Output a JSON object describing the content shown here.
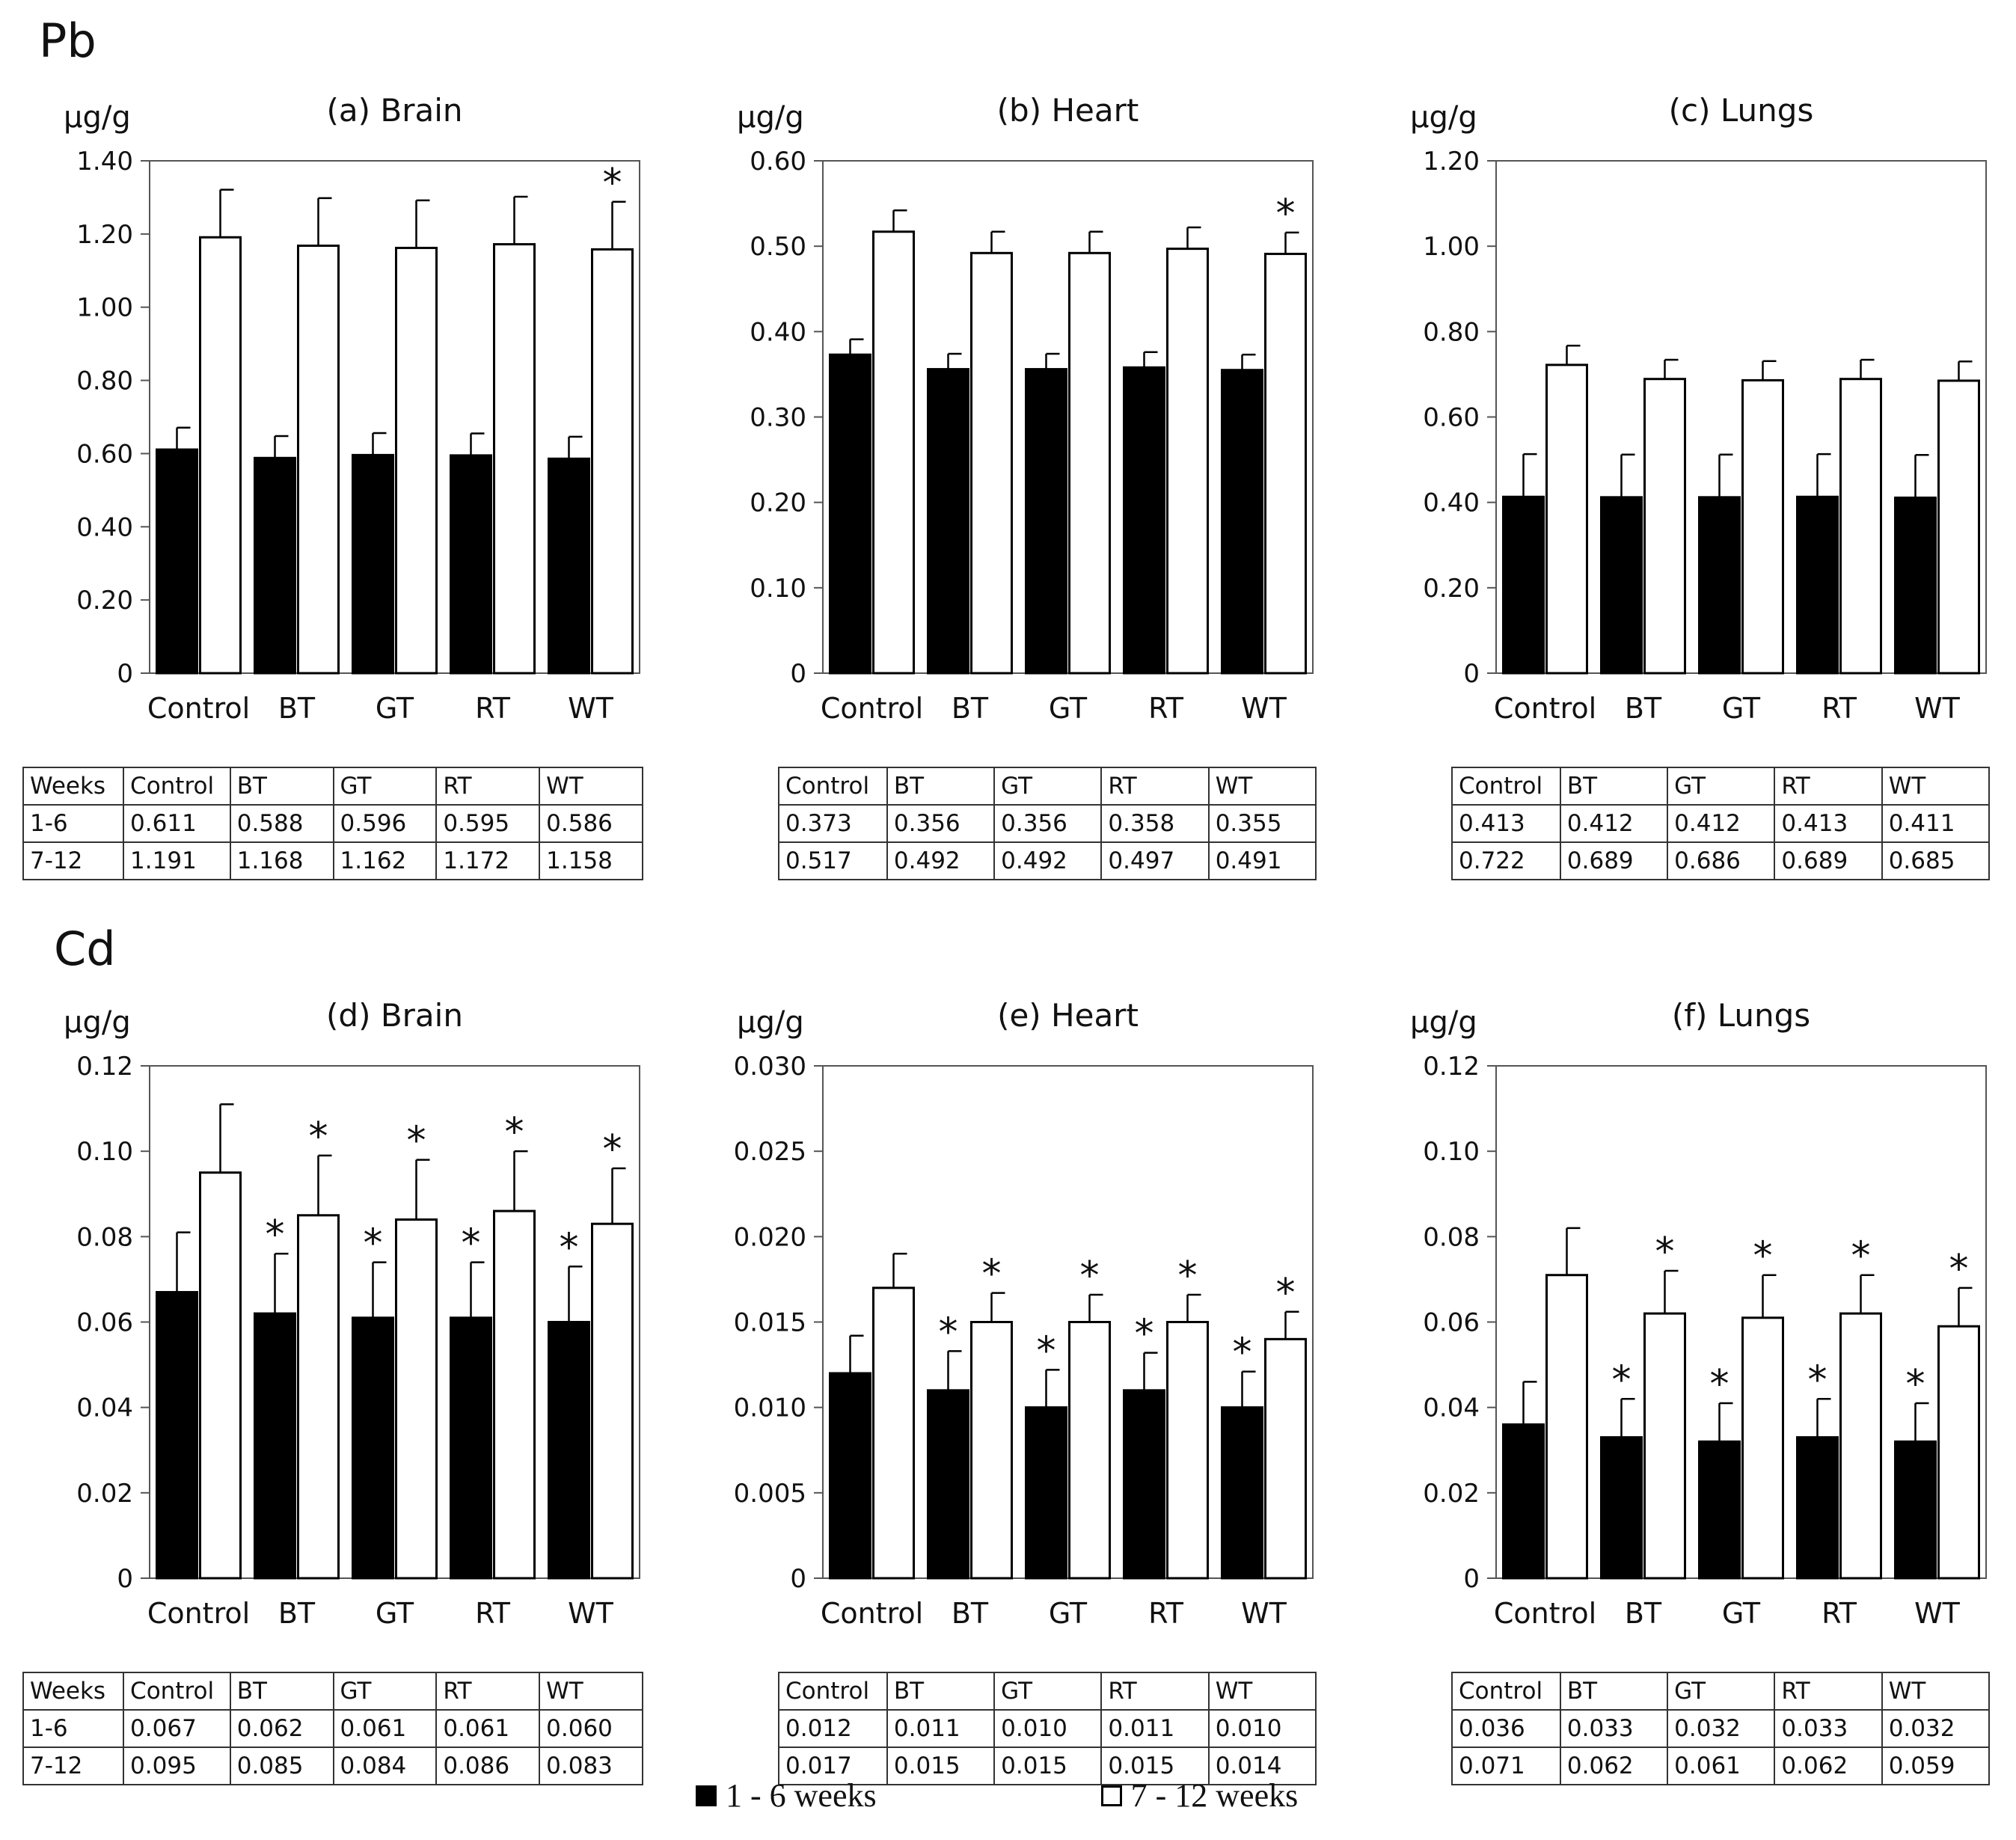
{
  "sections": {
    "pb": "Pb",
    "cd": "Cd"
  },
  "legend": {
    "series1": "1 - 6 weeks",
    "series2": "7 - 12 weeks",
    "color1": "#000000",
    "color2": "#ffffff"
  },
  "chart_data": [
    {
      "id": "a",
      "type": "bar",
      "title": "(a) Brain",
      "ylabel": "µg/g",
      "categories": [
        "Control",
        "BT",
        "GT",
        "RT",
        "WT"
      ],
      "ylim": [
        0,
        1.4
      ],
      "yticks": [
        0,
        0.2,
        0.4,
        0.6,
        0.8,
        1.0,
        1.2,
        1.4
      ],
      "ytick_labels": [
        "0",
        "0.20",
        "0.40",
        "0.60",
        "0.80",
        "1.00",
        "1.20",
        "1.40"
      ],
      "series": [
        {
          "name": "1 - 6 weeks",
          "values": [
            0.611,
            0.588,
            0.596,
            0.595,
            0.586
          ],
          "errors": [
            0.06,
            0.06,
            0.06,
            0.06,
            0.06
          ]
        },
        {
          "name": "7 - 12 weeks",
          "values": [
            1.191,
            1.168,
            1.162,
            1.172,
            1.158
          ],
          "errors": [
            0.13,
            0.13,
            0.13,
            0.13,
            0.13
          ]
        }
      ],
      "stars": [
        {
          "series": 1,
          "index": 4
        }
      ],
      "table": {
        "header": [
          "Weeks",
          "Control",
          "BT",
          "GT",
          "RT",
          "WT"
        ],
        "rows": [
          [
            "1-6",
            "0.611",
            "0.588",
            "0.596",
            "0.595",
            "0.586"
          ],
          [
            "7-12",
            "1.191",
            "1.168",
            "1.162",
            "1.172",
            "1.158"
          ]
        ]
      }
    },
    {
      "id": "b",
      "type": "bar",
      "title": "(b) Heart",
      "ylabel": "µg/g",
      "categories": [
        "Control",
        "BT",
        "GT",
        "RT",
        "WT"
      ],
      "ylim": [
        0,
        0.6
      ],
      "yticks": [
        0,
        0.1,
        0.2,
        0.3,
        0.4,
        0.5,
        0.6
      ],
      "ytick_labels": [
        "0",
        "0.10",
        "0.20",
        "0.30",
        "0.40",
        "0.50",
        "0.60"
      ],
      "series": [
        {
          "name": "1 - 6 weeks",
          "values": [
            0.373,
            0.356,
            0.356,
            0.358,
            0.355
          ],
          "errors": [
            0.018,
            0.018,
            0.018,
            0.018,
            0.018
          ]
        },
        {
          "name": "7 - 12 weeks",
          "values": [
            0.517,
            0.492,
            0.492,
            0.497,
            0.491
          ],
          "errors": [
            0.025,
            0.025,
            0.025,
            0.025,
            0.025
          ]
        }
      ],
      "stars": [
        {
          "series": 1,
          "index": 4
        }
      ],
      "table": {
        "header": [
          "Control",
          "BT",
          "GT",
          "RT",
          "WT"
        ],
        "rows": [
          [
            "0.373",
            "0.356",
            "0.356",
            "0.358",
            "0.355"
          ],
          [
            "0.517",
            "0.492",
            "0.492",
            "0.497",
            "0.491"
          ]
        ]
      }
    },
    {
      "id": "c",
      "type": "bar",
      "title": "(c) Lungs",
      "ylabel": "µg/g",
      "categories": [
        "Control",
        "BT",
        "GT",
        "RT",
        "WT"
      ],
      "ylim": [
        0,
        1.2
      ],
      "yticks": [
        0,
        0.2,
        0.4,
        0.6,
        0.8,
        1.0,
        1.2
      ],
      "ytick_labels": [
        "0",
        "0.20",
        "0.40",
        "0.60",
        "0.80",
        "1.00",
        "1.20"
      ],
      "series": [
        {
          "name": "1 - 6 weeks",
          "values": [
            0.413,
            0.412,
            0.412,
            0.413,
            0.411
          ],
          "errors": [
            0.1,
            0.1,
            0.1,
            0.1,
            0.1
          ]
        },
        {
          "name": "7 - 12 weeks",
          "values": [
            0.722,
            0.689,
            0.686,
            0.689,
            0.685
          ],
          "errors": [
            0.045,
            0.045,
            0.045,
            0.045,
            0.045
          ]
        }
      ],
      "stars": [],
      "table": {
        "header": [
          "Control",
          "BT",
          "GT",
          "RT",
          "WT"
        ],
        "rows": [
          [
            "0.413",
            "0.412",
            "0.412",
            "0.413",
            "0.411"
          ],
          [
            "0.722",
            "0.689",
            "0.686",
            "0.689",
            "0.685"
          ]
        ]
      }
    },
    {
      "id": "d",
      "type": "bar",
      "title": "(d) Brain",
      "ylabel": "µg/g",
      "categories": [
        "Control",
        "BT",
        "GT",
        "RT",
        "WT"
      ],
      "ylim": [
        0,
        0.12
      ],
      "yticks": [
        0,
        0.02,
        0.04,
        0.06,
        0.08,
        0.1,
        0.12
      ],
      "ytick_labels": [
        "0",
        "0.02",
        "0.04",
        "0.06",
        "0.08",
        "0.10",
        "0.12"
      ],
      "series": [
        {
          "name": "1 - 6 weeks",
          "values": [
            0.067,
            0.062,
            0.061,
            0.061,
            0.06
          ],
          "errors": [
            0.014,
            0.014,
            0.013,
            0.013,
            0.013
          ]
        },
        {
          "name": "7 - 12 weeks",
          "values": [
            0.095,
            0.085,
            0.084,
            0.086,
            0.083
          ],
          "errors": [
            0.016,
            0.014,
            0.014,
            0.014,
            0.013
          ]
        }
      ],
      "stars": [
        {
          "series": 0,
          "index": 1
        },
        {
          "series": 1,
          "index": 1
        },
        {
          "series": 0,
          "index": 2
        },
        {
          "series": 1,
          "index": 2
        },
        {
          "series": 0,
          "index": 3
        },
        {
          "series": 1,
          "index": 3
        },
        {
          "series": 0,
          "index": 4
        },
        {
          "series": 1,
          "index": 4
        }
      ],
      "table": {
        "header": [
          "Weeks",
          "Control",
          "BT",
          "GT",
          "RT",
          "WT"
        ],
        "rows": [
          [
            "1-6",
            "0.067",
            "0.062",
            "0.061",
            "0.061",
            "0.060"
          ],
          [
            "7-12",
            "0.095",
            "0.085",
            "0.084",
            "0.086",
            "0.083"
          ]
        ]
      }
    },
    {
      "id": "e",
      "type": "bar",
      "title": "(e) Heart",
      "ylabel": "µg/g",
      "categories": [
        "Control",
        "BT",
        "GT",
        "RT",
        "WT"
      ],
      "ylim": [
        0,
        0.03
      ],
      "yticks": [
        0,
        0.005,
        0.01,
        0.015,
        0.02,
        0.025,
        0.03
      ],
      "ytick_labels": [
        "0",
        "0.005",
        "0.010",
        "0.015",
        "0.020",
        "0.025",
        "0.030"
      ],
      "series": [
        {
          "name": "1 - 6 weeks",
          "values": [
            0.012,
            0.011,
            0.01,
            0.011,
            0.01
          ],
          "errors": [
            0.0022,
            0.0023,
            0.0022,
            0.0022,
            0.0021
          ]
        },
        {
          "name": "7 - 12 weeks",
          "values": [
            0.017,
            0.015,
            0.015,
            0.015,
            0.014
          ],
          "errors": [
            0.002,
            0.0017,
            0.0016,
            0.0016,
            0.0016
          ]
        }
      ],
      "stars": [
        {
          "series": 0,
          "index": 1
        },
        {
          "series": 1,
          "index": 1
        },
        {
          "series": 0,
          "index": 2
        },
        {
          "series": 1,
          "index": 2
        },
        {
          "series": 0,
          "index": 3
        },
        {
          "series": 1,
          "index": 3
        },
        {
          "series": 0,
          "index": 4
        },
        {
          "series": 1,
          "index": 4
        }
      ],
      "table": {
        "header": [
          "Control",
          "BT",
          "GT",
          "RT",
          "WT"
        ],
        "rows": [
          [
            "0.012",
            "0.011",
            "0.010",
            "0.011",
            "0.010"
          ],
          [
            "0.017",
            "0.015",
            "0.015",
            "0.015",
            "0.014"
          ]
        ]
      }
    },
    {
      "id": "f",
      "type": "bar",
      "title": "(f) Lungs",
      "ylabel": "µg/g",
      "categories": [
        "Control",
        "BT",
        "GT",
        "RT",
        "WT"
      ],
      "ylim": [
        0,
        0.12
      ],
      "yticks": [
        0,
        0.02,
        0.04,
        0.06,
        0.08,
        0.1,
        0.12
      ],
      "ytick_labels": [
        "0",
        "0.02",
        "0.04",
        "0.06",
        "0.08",
        "0.10",
        "0.12"
      ],
      "series": [
        {
          "name": "1 - 6 weeks",
          "values": [
            0.036,
            0.033,
            0.032,
            0.033,
            0.032
          ],
          "errors": [
            0.01,
            0.009,
            0.009,
            0.009,
            0.009
          ]
        },
        {
          "name": "7 - 12 weeks",
          "values": [
            0.071,
            0.062,
            0.061,
            0.062,
            0.059
          ],
          "errors": [
            0.011,
            0.01,
            0.01,
            0.009,
            0.009
          ]
        }
      ],
      "stars": [
        {
          "series": 0,
          "index": 1
        },
        {
          "series": 1,
          "index": 1
        },
        {
          "series": 0,
          "index": 2
        },
        {
          "series": 1,
          "index": 2
        },
        {
          "series": 0,
          "index": 3
        },
        {
          "series": 1,
          "index": 3
        },
        {
          "series": 0,
          "index": 4
        },
        {
          "series": 1,
          "index": 4
        }
      ],
      "table": {
        "header": [
          "Control",
          "BT",
          "GT",
          "RT",
          "WT"
        ],
        "rows": [
          [
            "0.036",
            "0.033",
            "0.032",
            "0.033",
            "0.032"
          ],
          [
            "0.071",
            "0.062",
            "0.061",
            "0.062",
            "0.059"
          ]
        ]
      }
    }
  ]
}
